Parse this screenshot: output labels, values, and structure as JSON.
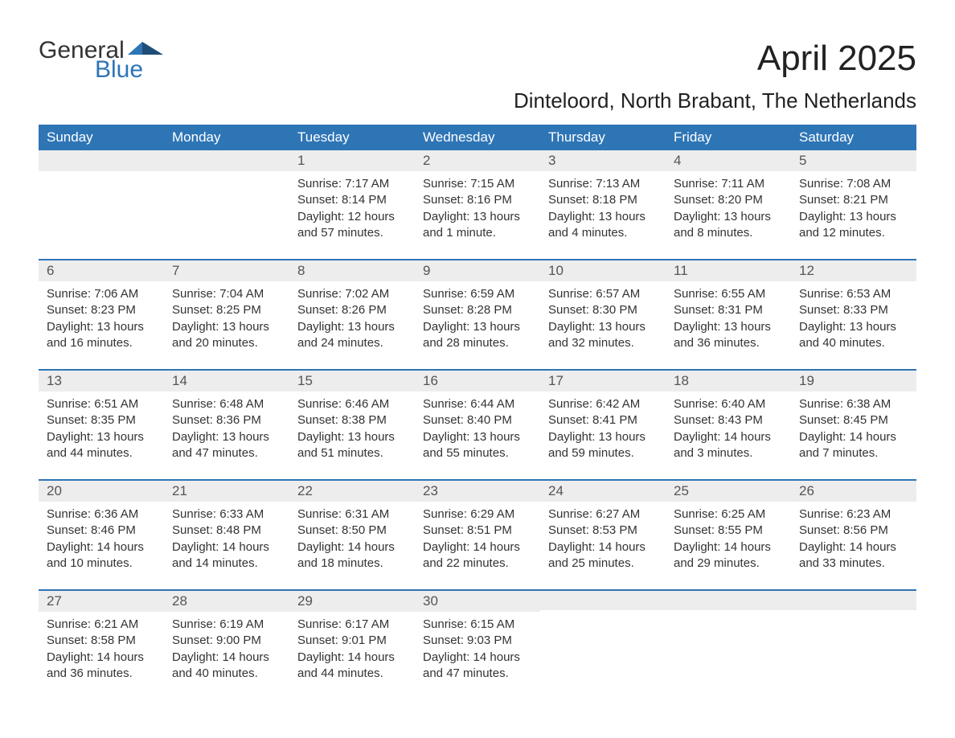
{
  "brand": {
    "word1": "General",
    "word2": "Blue",
    "flag_color": "#2e75b6"
  },
  "title": "April 2025",
  "location": "Dinteloord, North Brabant, The Netherlands",
  "colors": {
    "header_bg": "#2e75b6",
    "header_text": "#ffffff",
    "daynum_bg": "#ededed",
    "row_border": "#2e75b6",
    "body_text": "#333333",
    "page_bg": "#ffffff"
  },
  "typography": {
    "title_fontsize": 44,
    "location_fontsize": 26,
    "header_fontsize": 17,
    "daynum_fontsize": 17,
    "cell_fontsize": 15
  },
  "weekdays": [
    "Sunday",
    "Monday",
    "Tuesday",
    "Wednesday",
    "Thursday",
    "Friday",
    "Saturday"
  ],
  "weeks": [
    [
      {
        "day": null
      },
      {
        "day": null
      },
      {
        "day": 1,
        "sunrise": "Sunrise: 7:17 AM",
        "sunset": "Sunset: 8:14 PM",
        "daylight1": "Daylight: 12 hours",
        "daylight2": "and 57 minutes."
      },
      {
        "day": 2,
        "sunrise": "Sunrise: 7:15 AM",
        "sunset": "Sunset: 8:16 PM",
        "daylight1": "Daylight: 13 hours",
        "daylight2": "and 1 minute."
      },
      {
        "day": 3,
        "sunrise": "Sunrise: 7:13 AM",
        "sunset": "Sunset: 8:18 PM",
        "daylight1": "Daylight: 13 hours",
        "daylight2": "and 4 minutes."
      },
      {
        "day": 4,
        "sunrise": "Sunrise: 7:11 AM",
        "sunset": "Sunset: 8:20 PM",
        "daylight1": "Daylight: 13 hours",
        "daylight2": "and 8 minutes."
      },
      {
        "day": 5,
        "sunrise": "Sunrise: 7:08 AM",
        "sunset": "Sunset: 8:21 PM",
        "daylight1": "Daylight: 13 hours",
        "daylight2": "and 12 minutes."
      }
    ],
    [
      {
        "day": 6,
        "sunrise": "Sunrise: 7:06 AM",
        "sunset": "Sunset: 8:23 PM",
        "daylight1": "Daylight: 13 hours",
        "daylight2": "and 16 minutes."
      },
      {
        "day": 7,
        "sunrise": "Sunrise: 7:04 AM",
        "sunset": "Sunset: 8:25 PM",
        "daylight1": "Daylight: 13 hours",
        "daylight2": "and 20 minutes."
      },
      {
        "day": 8,
        "sunrise": "Sunrise: 7:02 AM",
        "sunset": "Sunset: 8:26 PM",
        "daylight1": "Daylight: 13 hours",
        "daylight2": "and 24 minutes."
      },
      {
        "day": 9,
        "sunrise": "Sunrise: 6:59 AM",
        "sunset": "Sunset: 8:28 PM",
        "daylight1": "Daylight: 13 hours",
        "daylight2": "and 28 minutes."
      },
      {
        "day": 10,
        "sunrise": "Sunrise: 6:57 AM",
        "sunset": "Sunset: 8:30 PM",
        "daylight1": "Daylight: 13 hours",
        "daylight2": "and 32 minutes."
      },
      {
        "day": 11,
        "sunrise": "Sunrise: 6:55 AM",
        "sunset": "Sunset: 8:31 PM",
        "daylight1": "Daylight: 13 hours",
        "daylight2": "and 36 minutes."
      },
      {
        "day": 12,
        "sunrise": "Sunrise: 6:53 AM",
        "sunset": "Sunset: 8:33 PM",
        "daylight1": "Daylight: 13 hours",
        "daylight2": "and 40 minutes."
      }
    ],
    [
      {
        "day": 13,
        "sunrise": "Sunrise: 6:51 AM",
        "sunset": "Sunset: 8:35 PM",
        "daylight1": "Daylight: 13 hours",
        "daylight2": "and 44 minutes."
      },
      {
        "day": 14,
        "sunrise": "Sunrise: 6:48 AM",
        "sunset": "Sunset: 8:36 PM",
        "daylight1": "Daylight: 13 hours",
        "daylight2": "and 47 minutes."
      },
      {
        "day": 15,
        "sunrise": "Sunrise: 6:46 AM",
        "sunset": "Sunset: 8:38 PM",
        "daylight1": "Daylight: 13 hours",
        "daylight2": "and 51 minutes."
      },
      {
        "day": 16,
        "sunrise": "Sunrise: 6:44 AM",
        "sunset": "Sunset: 8:40 PM",
        "daylight1": "Daylight: 13 hours",
        "daylight2": "and 55 minutes."
      },
      {
        "day": 17,
        "sunrise": "Sunrise: 6:42 AM",
        "sunset": "Sunset: 8:41 PM",
        "daylight1": "Daylight: 13 hours",
        "daylight2": "and 59 minutes."
      },
      {
        "day": 18,
        "sunrise": "Sunrise: 6:40 AM",
        "sunset": "Sunset: 8:43 PM",
        "daylight1": "Daylight: 14 hours",
        "daylight2": "and 3 minutes."
      },
      {
        "day": 19,
        "sunrise": "Sunrise: 6:38 AM",
        "sunset": "Sunset: 8:45 PM",
        "daylight1": "Daylight: 14 hours",
        "daylight2": "and 7 minutes."
      }
    ],
    [
      {
        "day": 20,
        "sunrise": "Sunrise: 6:36 AM",
        "sunset": "Sunset: 8:46 PM",
        "daylight1": "Daylight: 14 hours",
        "daylight2": "and 10 minutes."
      },
      {
        "day": 21,
        "sunrise": "Sunrise: 6:33 AM",
        "sunset": "Sunset: 8:48 PM",
        "daylight1": "Daylight: 14 hours",
        "daylight2": "and 14 minutes."
      },
      {
        "day": 22,
        "sunrise": "Sunrise: 6:31 AM",
        "sunset": "Sunset: 8:50 PM",
        "daylight1": "Daylight: 14 hours",
        "daylight2": "and 18 minutes."
      },
      {
        "day": 23,
        "sunrise": "Sunrise: 6:29 AM",
        "sunset": "Sunset: 8:51 PM",
        "daylight1": "Daylight: 14 hours",
        "daylight2": "and 22 minutes."
      },
      {
        "day": 24,
        "sunrise": "Sunrise: 6:27 AM",
        "sunset": "Sunset: 8:53 PM",
        "daylight1": "Daylight: 14 hours",
        "daylight2": "and 25 minutes."
      },
      {
        "day": 25,
        "sunrise": "Sunrise: 6:25 AM",
        "sunset": "Sunset: 8:55 PM",
        "daylight1": "Daylight: 14 hours",
        "daylight2": "and 29 minutes."
      },
      {
        "day": 26,
        "sunrise": "Sunrise: 6:23 AM",
        "sunset": "Sunset: 8:56 PM",
        "daylight1": "Daylight: 14 hours",
        "daylight2": "and 33 minutes."
      }
    ],
    [
      {
        "day": 27,
        "sunrise": "Sunrise: 6:21 AM",
        "sunset": "Sunset: 8:58 PM",
        "daylight1": "Daylight: 14 hours",
        "daylight2": "and 36 minutes."
      },
      {
        "day": 28,
        "sunrise": "Sunrise: 6:19 AM",
        "sunset": "Sunset: 9:00 PM",
        "daylight1": "Daylight: 14 hours",
        "daylight2": "and 40 minutes."
      },
      {
        "day": 29,
        "sunrise": "Sunrise: 6:17 AM",
        "sunset": "Sunset: 9:01 PM",
        "daylight1": "Daylight: 14 hours",
        "daylight2": "and 44 minutes."
      },
      {
        "day": 30,
        "sunrise": "Sunrise: 6:15 AM",
        "sunset": "Sunset: 9:03 PM",
        "daylight1": "Daylight: 14 hours",
        "daylight2": "and 47 minutes."
      },
      {
        "day": null
      },
      {
        "day": null
      },
      {
        "day": null
      }
    ]
  ]
}
